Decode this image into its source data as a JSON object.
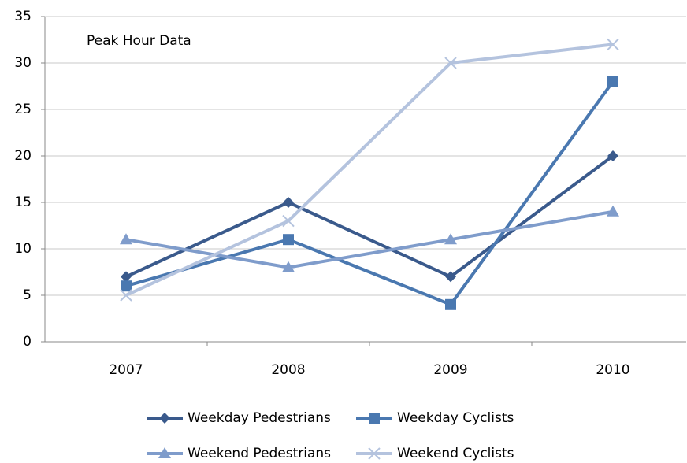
{
  "chart_data": {
    "type": "line",
    "annotation": "Peak Hour Data",
    "categories": [
      "2007",
      "2008",
      "2009",
      "2010"
    ],
    "series": [
      {
        "name": "Weekday Pedestrians",
        "color": "#3a5a8c",
        "marker": "diamond",
        "values": [
          7,
          15,
          7,
          20
        ]
      },
      {
        "name": "Weekday Cyclists",
        "color": "#4a78b0",
        "marker": "square",
        "values": [
          6,
          11,
          4,
          28
        ]
      },
      {
        "name": "Weekend Pedestrians",
        "color": "#7f9ccb",
        "marker": "triangle",
        "values": [
          11,
          8,
          11,
          14
        ]
      },
      {
        "name": "Weekend Cyclists",
        "color": "#b4c3de",
        "marker": "x",
        "values": [
          5,
          13,
          30,
          32
        ]
      }
    ],
    "ylim": [
      0,
      35
    ],
    "yticks": [
      0,
      5,
      10,
      15,
      20,
      25,
      30,
      35
    ],
    "grid": true,
    "legend": "bottom"
  }
}
